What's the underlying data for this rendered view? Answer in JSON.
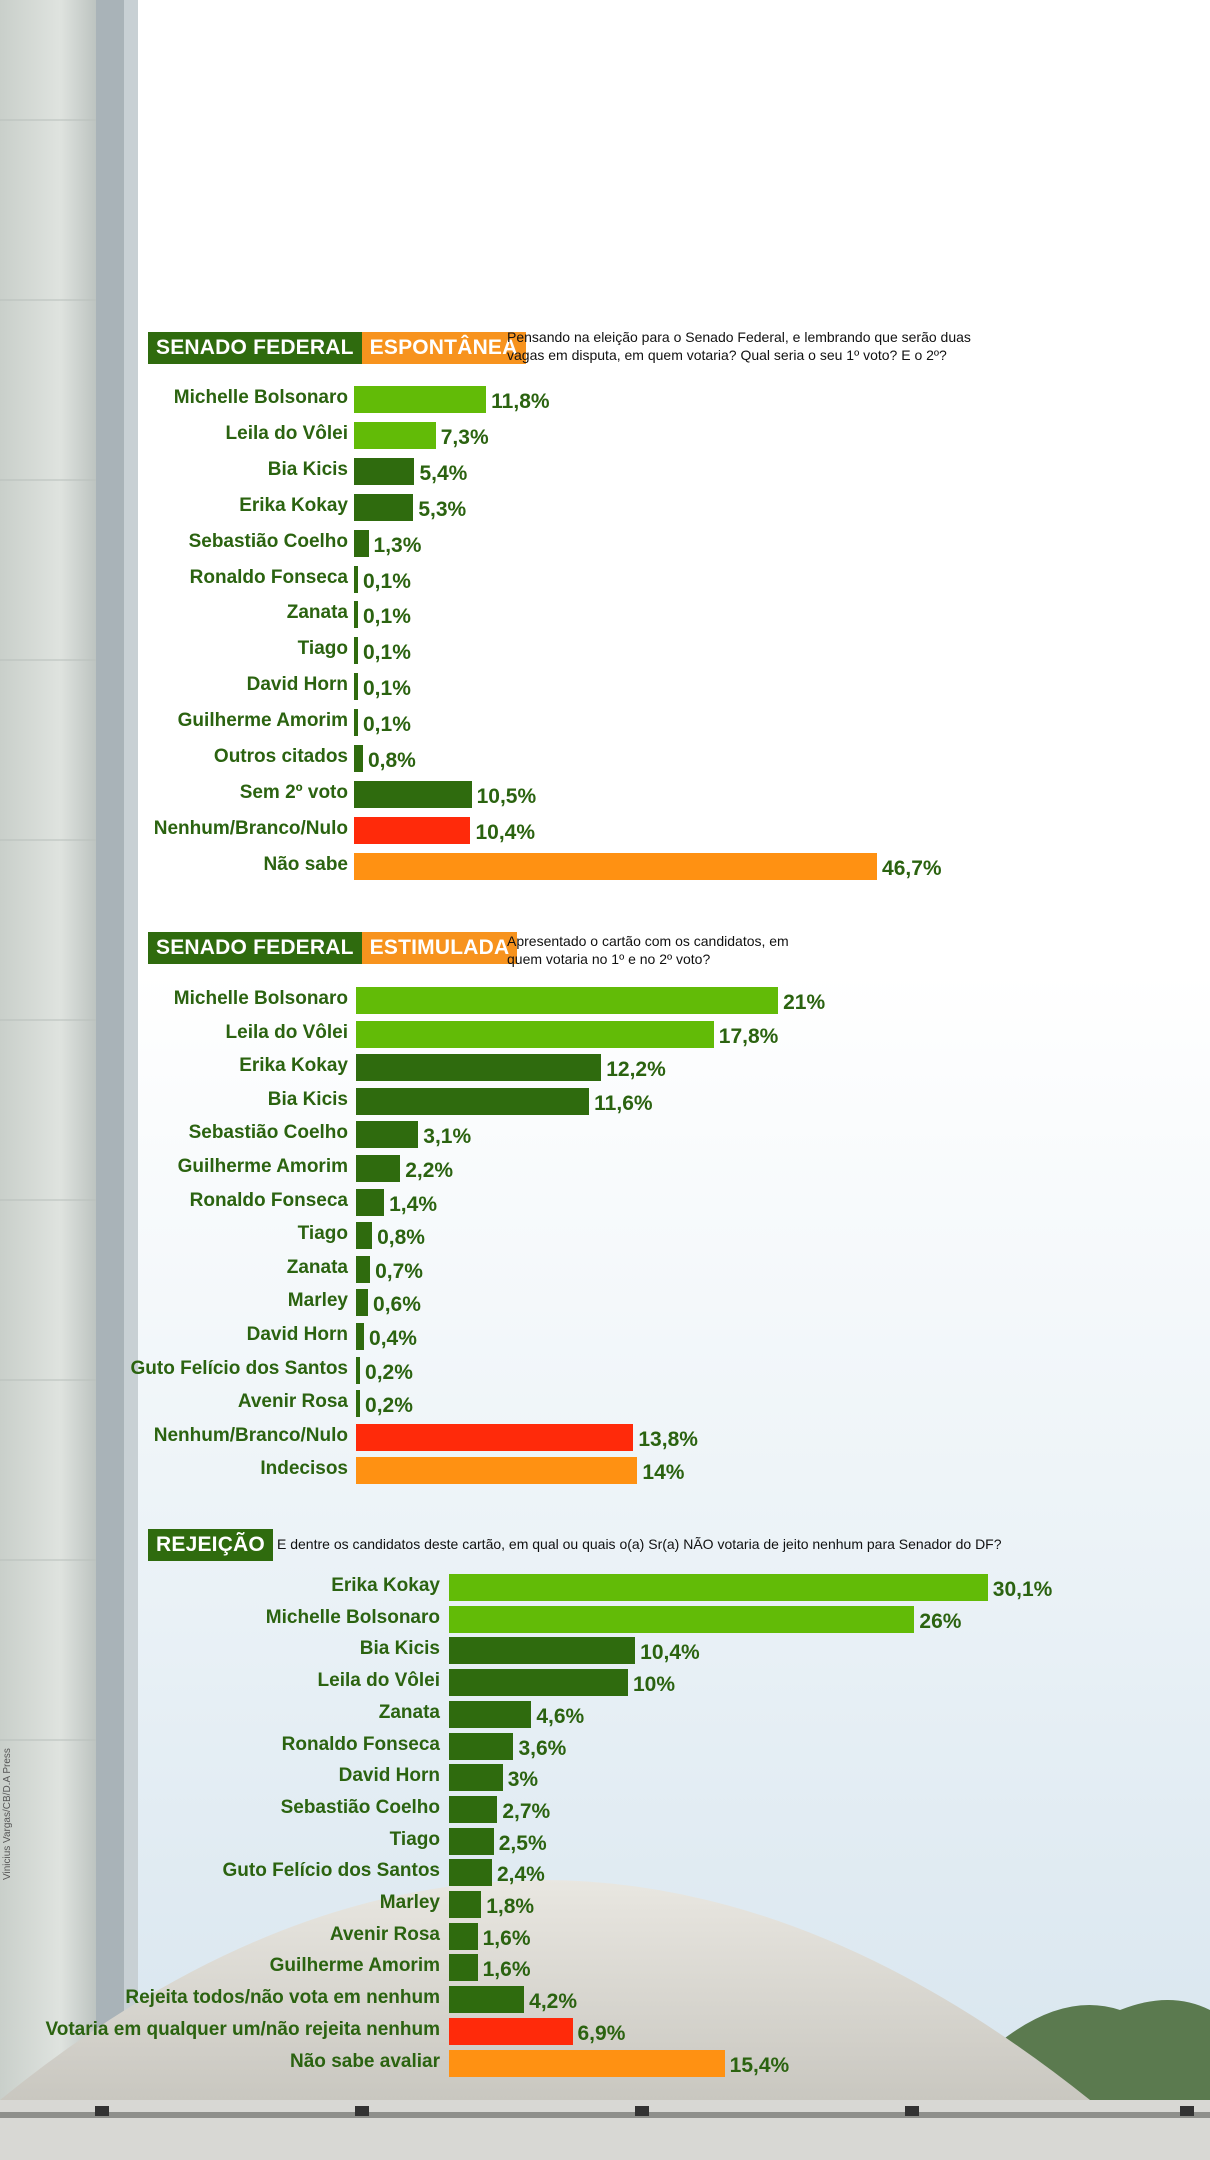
{
  "colors": {
    "light_green": "#62bb07",
    "dark_green": "#2f6b0e",
    "red": "#ff2a0a",
    "orange": "#ff9112",
    "label_green": "#2b6310"
  },
  "photo_credit": "Vinicius Vargas/CB/D.A Press",
  "chart_data": [
    {
      "type": "bar",
      "orientation": "horizontal",
      "title": "SENADO FEDERAL",
      "subtitle": "ESPONTÂNEA",
      "question": "Pensando na eleição para o Senado Federal, e lembrando que serão duas vagas em disputa, em quem votaria? Qual seria o seu 1º voto? E o 2º?",
      "categories": [
        "Michelle Bolsonaro",
        "Leila do Vôlei",
        "Bia Kicis",
        "Erika Kokay",
        "Sebastião Coelho",
        "Ronaldo Fonseca",
        "Zanata",
        "Tiago",
        "David Horn",
        "Guilherme Amorim",
        "Outros citados",
        "Sem 2º voto",
        "Nenhum/Branco/Nulo",
        "Não sabe"
      ],
      "values": [
        11.8,
        7.3,
        5.4,
        5.3,
        1.3,
        0.1,
        0.1,
        0.1,
        0.1,
        0.1,
        0.8,
        10.5,
        10.4,
        46.7
      ],
      "value_labels": [
        "11,8%",
        "7,3%",
        "5,4%",
        "5,3%",
        "1,3%",
        "0,1%",
        "0,1%",
        "0,1%",
        "0,1%",
        "0,1%",
        "0,8%",
        "10,5%",
        "10,4%",
        "46,7%"
      ],
      "bar_colors": [
        "light_green",
        "light_green",
        "dark_green",
        "dark_green",
        "dark_green",
        "dark_green",
        "dark_green",
        "dark_green",
        "dark_green",
        "dark_green",
        "dark_green",
        "dark_green",
        "red",
        "orange"
      ]
    },
    {
      "type": "bar",
      "orientation": "horizontal",
      "title": "SENADO FEDERAL",
      "subtitle": "ESTIMULADA",
      "question": "Apresentado o cartão com os candidatos, em quem votaria no 1º e no 2º voto?",
      "categories": [
        "Michelle Bolsonaro",
        "Leila do Vôlei",
        "Erika Kokay",
        "Bia Kicis",
        "Sebastião Coelho",
        "Guilherme Amorim",
        "Ronaldo Fonseca",
        "Tiago",
        "Zanata",
        "Marley",
        "David Horn",
        "Guto Felício dos Santos",
        "Avenir Rosa",
        "Nenhum/Branco/Nulo",
        "Indecisos"
      ],
      "values": [
        21,
        17.8,
        12.2,
        11.6,
        3.1,
        2.2,
        1.4,
        0.8,
        0.7,
        0.6,
        0.4,
        0.2,
        0.2,
        13.8,
        14
      ],
      "value_labels": [
        "21%",
        "17,8%",
        "12,2%",
        "11,6%",
        "3,1%",
        "2,2%",
        "1,4%",
        "0,8%",
        "0,7%",
        "0,6%",
        "0,4%",
        "0,2%",
        "0,2%",
        "13,8%",
        "14%"
      ],
      "bar_colors": [
        "light_green",
        "light_green",
        "dark_green",
        "dark_green",
        "dark_green",
        "dark_green",
        "dark_green",
        "dark_green",
        "dark_green",
        "dark_green",
        "dark_green",
        "dark_green",
        "dark_green",
        "red",
        "orange"
      ]
    },
    {
      "type": "bar",
      "orientation": "horizontal",
      "title": "REJEIÇÃO",
      "subtitle": "",
      "question": "E dentre os candidatos deste cartão, em qual ou quais o(a) Sr(a) NÃO votaria de jeito nenhum para Senador do DF?",
      "categories": [
        "Erika Kokay",
        "Michelle Bolsonaro",
        "Bia Kicis",
        "Leila do Vôlei",
        "Zanata",
        "Ronaldo Fonseca",
        "David Horn",
        "Sebastião Coelho",
        "Tiago",
        "Guto Felício dos Santos",
        "Marley",
        "Avenir Rosa",
        "Guilherme Amorim",
        "Rejeita todos/não vota em nenhum",
        "Votaria em qualquer um/não rejeita nenhum",
        "Não sabe avaliar"
      ],
      "values": [
        30.1,
        26,
        10.4,
        10,
        4.6,
        3.6,
        3,
        2.7,
        2.5,
        2.4,
        1.8,
        1.6,
        1.6,
        4.2,
        6.9,
        15.4
      ],
      "value_labels": [
        "30,1%",
        "26%",
        "10,4%",
        "10%",
        "4,6%",
        "3,6%",
        "3%",
        "2,7%",
        "2,5%",
        "2,4%",
        "1,8%",
        "1,6%",
        "1,6%",
        "4,2%",
        "6,9%",
        "15,4%"
      ],
      "bar_colors": [
        "light_green",
        "light_green",
        "dark_green",
        "dark_green",
        "dark_green",
        "dark_green",
        "dark_green",
        "dark_green",
        "dark_green",
        "dark_green",
        "dark_green",
        "dark_green",
        "dark_green",
        "dark_green",
        "red",
        "orange"
      ]
    }
  ]
}
